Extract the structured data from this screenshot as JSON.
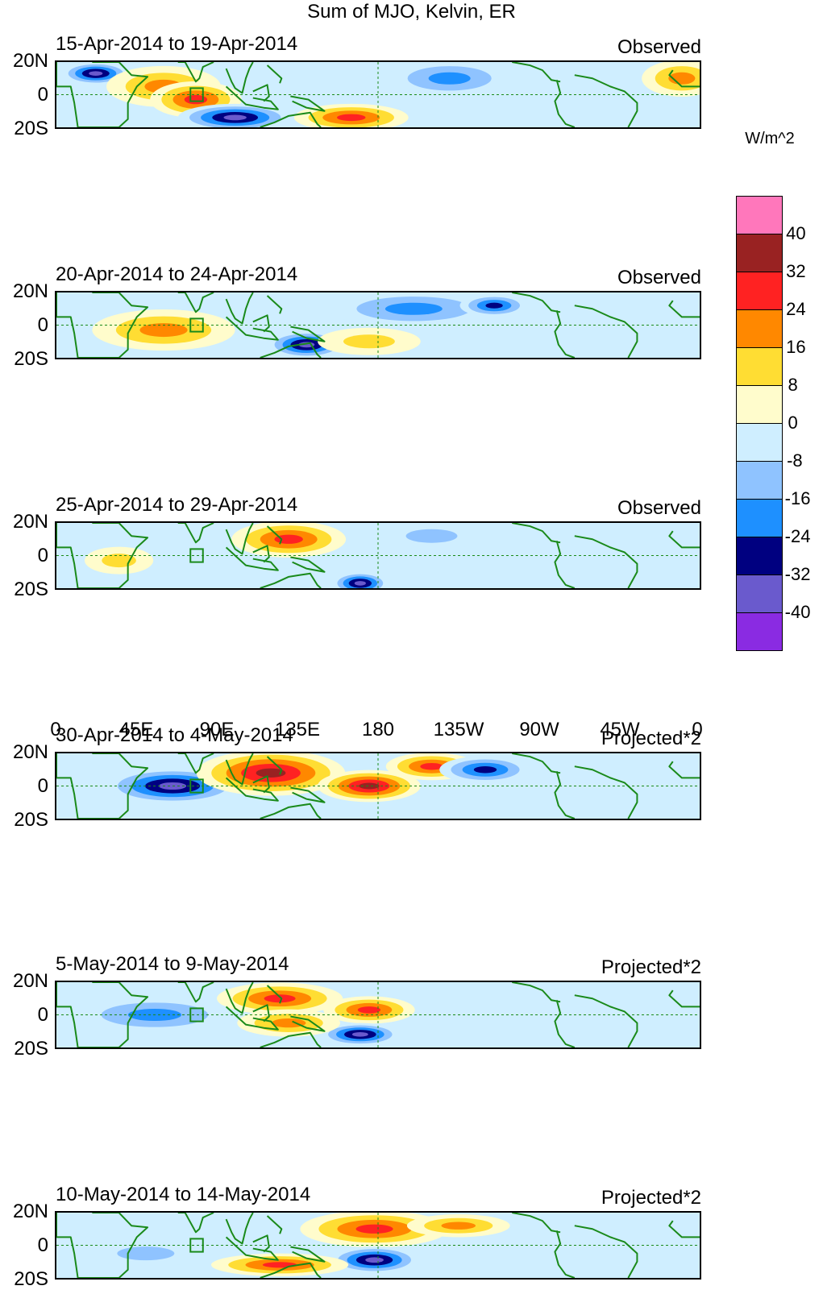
{
  "title": "Sum of MJO, Kelvin, ER",
  "colors": {
    "levels": [
      "#8a2be2",
      "#6a5acd",
      "#000080",
      "#1e90ff",
      "#8fc3ff",
      "#cfeeff",
      "#fffccc",
      "#ffdd33",
      "#ff8800",
      "#ff2222",
      "#992222",
      "#ff77bb"
    ],
    "land": "#1a8a1a"
  },
  "colorbar": {
    "unit": "W/m^2",
    "labels": [
      "40",
      "32",
      "24",
      "16",
      "8",
      "0",
      "-8",
      "-16",
      "-24",
      "-32",
      "-40"
    ]
  },
  "axes": {
    "lat_labels": [
      "20N",
      "0",
      "20S"
    ],
    "lon_labels": [
      "0",
      "45E",
      "90E",
      "135E",
      "180",
      "135W",
      "90W",
      "45W",
      "0"
    ],
    "lon_values": [
      0,
      45,
      90,
      135,
      180,
      225,
      270,
      315,
      360
    ],
    "lat_range": [
      -20,
      20
    ],
    "lon_range": [
      0,
      360
    ]
  },
  "chart_data": {
    "type": "heatmap",
    "title": "Sum of MJO, Kelvin, ER",
    "units": "W/m^2",
    "contour_levels": [
      -40,
      -32,
      -24,
      -16,
      -8,
      0,
      8,
      16,
      24,
      32,
      40
    ],
    "panels": [
      {
        "label": "15-Apr-2014 to 19-Apr-2014",
        "kind": "Observed",
        "features": [
          {
            "lon": 22,
            "lat": 13,
            "rx": 12,
            "ry": 5,
            "value": -40
          },
          {
            "lon": 60,
            "lat": 5,
            "rx": 20,
            "ry": 9,
            "value": 22
          },
          {
            "lon": 78,
            "lat": -3,
            "rx": 16,
            "ry": 8,
            "value": 28
          },
          {
            "lon": 100,
            "lat": -14,
            "rx": 20,
            "ry": 6,
            "value": -36
          },
          {
            "lon": 165,
            "lat": -14,
            "rx": 20,
            "ry": 6,
            "value": 28
          },
          {
            "lon": 220,
            "lat": 10,
            "rx": 22,
            "ry": 8,
            "value": -20
          },
          {
            "lon": 350,
            "lat": 10,
            "rx": 14,
            "ry": 8,
            "value": 20
          }
        ]
      },
      {
        "label": "20-Apr-2014 to 24-Apr-2014",
        "kind": "Observed",
        "features": [
          {
            "lon": 60,
            "lat": -3,
            "rx": 25,
            "ry": 9,
            "value": 22
          },
          {
            "lon": 140,
            "lat": -12,
            "rx": 14,
            "ry": 6,
            "value": -36
          },
          {
            "lon": 200,
            "lat": 10,
            "rx": 30,
            "ry": 8,
            "value": -18
          },
          {
            "lon": 245,
            "lat": 12,
            "rx": 12,
            "ry": 5,
            "value": -32
          },
          {
            "lon": 175,
            "lat": -10,
            "rx": 18,
            "ry": 6,
            "value": 10
          }
        ]
      },
      {
        "label": "25-Apr-2014 to 29-Apr-2014",
        "kind": "Observed",
        "features": [
          {
            "lon": 130,
            "lat": 10,
            "rx": 20,
            "ry": 8,
            "value": 30
          },
          {
            "lon": 170,
            "lat": -17,
            "rx": 10,
            "ry": 5,
            "value": -40
          },
          {
            "lon": 210,
            "lat": 12,
            "rx": 18,
            "ry": 6,
            "value": -16
          },
          {
            "lon": 35,
            "lat": -3,
            "rx": 12,
            "ry": 6,
            "value": 16
          }
        ]
      },
      {
        "label": "30-Apr-2014 to 4-May-2014",
        "kind": "Projected*2",
        "features": [
          {
            "lon": 65,
            "lat": 0,
            "rx": 24,
            "ry": 8,
            "value": -40
          },
          {
            "lon": 120,
            "lat": 8,
            "rx": 26,
            "ry": 10,
            "value": 34
          },
          {
            "lon": 175,
            "lat": 0,
            "rx": 18,
            "ry": 7,
            "value": 40
          },
          {
            "lon": 210,
            "lat": 12,
            "rx": 16,
            "ry": 6,
            "value": 26
          },
          {
            "lon": 240,
            "lat": 10,
            "rx": 16,
            "ry": 6,
            "value": -28
          }
        ]
      },
      {
        "label": "5-May-2014 to 9-May-2014",
        "kind": "Projected*2",
        "features": [
          {
            "lon": 125,
            "lat": 10,
            "rx": 22,
            "ry": 7,
            "value": 32
          },
          {
            "lon": 175,
            "lat": 3,
            "rx": 16,
            "ry": 6,
            "value": 30
          },
          {
            "lon": 170,
            "lat": -12,
            "rx": 14,
            "ry": 5,
            "value": -38
          },
          {
            "lon": 55,
            "lat": 0,
            "rx": 28,
            "ry": 8,
            "value": -18
          },
          {
            "lon": 130,
            "lat": -5,
            "rx": 18,
            "ry": 6,
            "value": 20
          }
        ]
      },
      {
        "label": "10-May-2014 to 14-May-2014",
        "kind": "Projected*2",
        "features": [
          {
            "lon": 178,
            "lat": 10,
            "rx": 26,
            "ry": 8,
            "value": 32
          },
          {
            "lon": 178,
            "lat": -9,
            "rx": 16,
            "ry": 6,
            "value": -38
          },
          {
            "lon": 125,
            "lat": -12,
            "rx": 24,
            "ry": 5,
            "value": 28
          },
          {
            "lon": 225,
            "lat": 12,
            "rx": 18,
            "ry": 5,
            "value": 20
          },
          {
            "lon": 50,
            "lat": -5,
            "rx": 20,
            "ry": 6,
            "value": -16
          }
        ]
      }
    ]
  }
}
